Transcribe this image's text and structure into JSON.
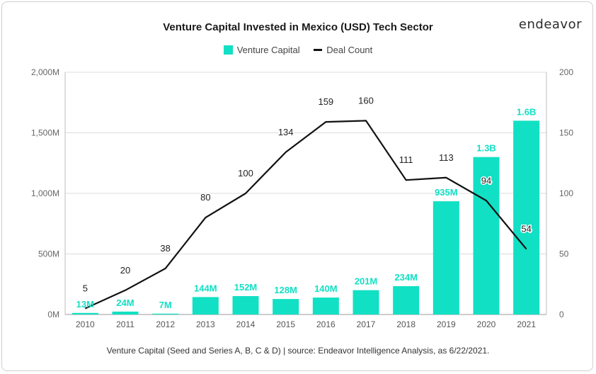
{
  "header": {
    "title": "Venture Capital Invested in Mexico (USD) Tech Sector",
    "brand": "endeavor"
  },
  "legend": {
    "venture_label": "Venture Capital",
    "deal_label": "Deal Count"
  },
  "footnote": "Venture Capital (Seed and Series A, B, C & D) | source: Endeavor Intelligence Analysis, as 6/22/2021.",
  "colors": {
    "bar": "#12e0c4",
    "bar_label": "#12e0c4",
    "line": "#111111"
  },
  "chart_data": {
    "type": "bar",
    "categories": [
      "2010",
      "2011",
      "2012",
      "2013",
      "2014",
      "2015",
      "2016",
      "2017",
      "2018",
      "2019",
      "2020",
      "2021"
    ],
    "series": [
      {
        "name": "Venture Capital",
        "type": "bar",
        "axis": "left",
        "values": [
          13,
          24,
          7,
          144,
          152,
          128,
          140,
          201,
          234,
          935,
          1300,
          1600
        ],
        "labels": [
          "13M",
          "24M",
          "7M",
          "144M",
          "152M",
          "128M",
          "140M",
          "201M",
          "234M",
          "935M",
          "1.3B",
          "1.6B"
        ]
      },
      {
        "name": "Deal Count",
        "type": "line",
        "axis": "right",
        "values": [
          5,
          20,
          38,
          80,
          100,
          134,
          159,
          160,
          111,
          113,
          94,
          54
        ],
        "labels": [
          "5",
          "20",
          "38",
          "80",
          "100",
          "134",
          "159",
          "160",
          "111",
          "113",
          "94",
          "54"
        ]
      }
    ],
    "left_axis": {
      "ylim": [
        0,
        2000
      ],
      "ticks": [
        0,
        500,
        1000,
        1500,
        2000
      ],
      "tick_labels": [
        "0M",
        "500M",
        "1,000M",
        "1,500M",
        "2,000M"
      ]
    },
    "right_axis": {
      "ylim": [
        0,
        200
      ],
      "ticks": [
        0,
        50,
        100,
        150,
        200
      ],
      "tick_labels": [
        "0",
        "50",
        "100",
        "150",
        "200"
      ]
    },
    "grid": true,
    "legend_position": "top-center"
  }
}
